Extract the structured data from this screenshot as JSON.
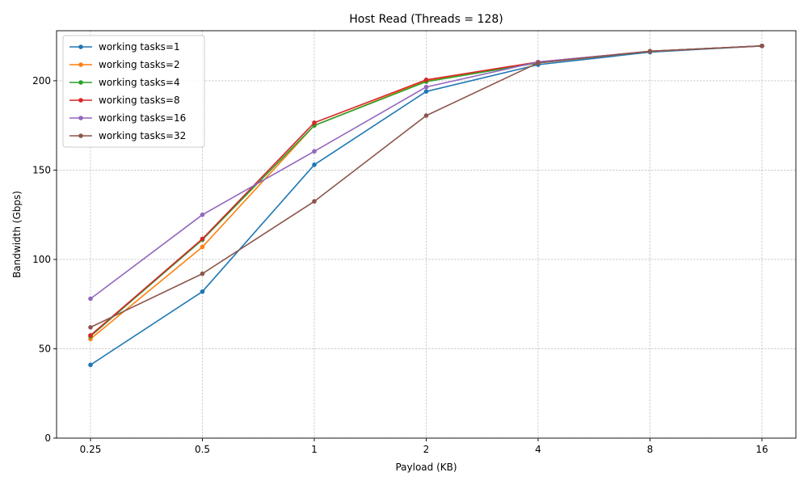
{
  "chart_data": {
    "type": "line",
    "title": "Host Read (Threads = 128)",
    "xlabel": "Payload (KB)",
    "ylabel": "Bandwidth (Gbps)",
    "x_scale": "log2",
    "categories": [
      "0.25",
      "0.5",
      "1",
      "2",
      "4",
      "8",
      "16"
    ],
    "ylim": [
      0,
      228
    ],
    "y_ticks": [
      0,
      50,
      100,
      150,
      200
    ],
    "grid": true,
    "legend_position": "top-left",
    "series": [
      {
        "name": "working tasks=1",
        "color": "#1f77b4",
        "values": [
          41,
          82,
          153,
          194,
          209,
          216,
          219.5
        ]
      },
      {
        "name": "working tasks=2",
        "color": "#ff7f0e",
        "values": [
          55.5,
          107,
          175,
          200,
          210,
          216.5,
          219.5
        ]
      },
      {
        "name": "working tasks=4",
        "color": "#2ca02c",
        "values": [
          57,
          111,
          175,
          199.5,
          210,
          216.5,
          219.5
        ]
      },
      {
        "name": "working tasks=8",
        "color": "#d62728",
        "values": [
          57.5,
          111.5,
          176.5,
          200.5,
          210.5,
          216.5,
          219.5
        ]
      },
      {
        "name": "working tasks=16",
        "color": "#9467bd",
        "values": [
          78,
          125,
          160.5,
          196.5,
          210.5,
          216.5,
          219.5
        ]
      },
      {
        "name": "working tasks=32",
        "color": "#8c564b",
        "values": [
          62,
          92,
          132.5,
          180.5,
          210,
          216.5,
          219.5
        ]
      }
    ]
  }
}
